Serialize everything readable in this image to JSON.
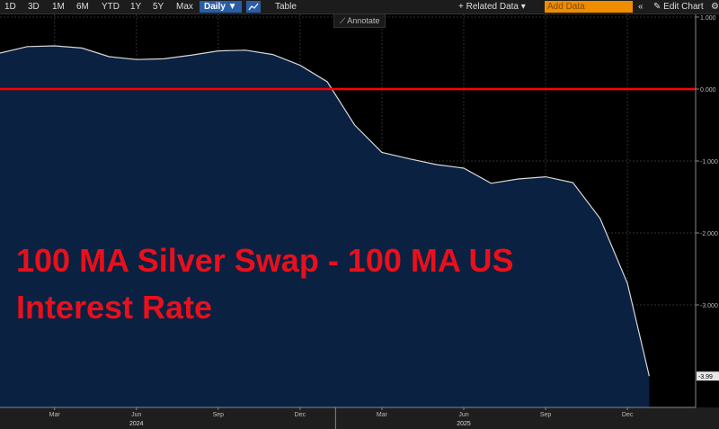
{
  "toolbar": {
    "ranges": [
      "1D",
      "3D",
      "1M",
      "6M",
      "YTD",
      "1Y",
      "5Y",
      "Max"
    ],
    "interval": "Daily ▼",
    "table": "Table",
    "related": "+ Related Data ▾",
    "add_placeholder": "Add Data",
    "collapse": "«",
    "edit_chart": "✎ Edit Chart",
    "settings": "⚙",
    "annotate": "⟋ Annotate"
  },
  "colors": {
    "background": "#000000",
    "area_fill": "#0b2142",
    "line": "#d8d8d8",
    "zero_line": "#ff0000",
    "title": "#e8101c",
    "grid": "#2f2f2f"
  },
  "chart_data": {
    "type": "area",
    "title": "100 MA Silver Swap - 100 MA US Interest Rate",
    "xlabel": "",
    "ylabel": "",
    "ylim": [
      -4.25,
      1.0
    ],
    "y_ticks": [
      1.0,
      0.0,
      -1.0,
      -2.0,
      -3.0
    ],
    "y_tick_labels": [
      "1.000",
      "0.000",
      "-1.000",
      "-2.000",
      "-3.000"
    ],
    "x_tick_labels": [
      "Mar",
      "Jun",
      "Sep",
      "Dec",
      "Mar",
      "Jun",
      "Sep",
      "Dec"
    ],
    "x_tick_months": [
      2,
      5,
      8,
      11,
      14,
      17,
      20,
      23
    ],
    "year_labels": [
      "2024",
      "2025"
    ],
    "year_label_months": [
      5,
      17
    ],
    "xlim_months": [
      0,
      25.5
    ],
    "reference_line": 0.0,
    "last_value_label": "-3.99",
    "series": [
      {
        "name": "100 MA Silver Swap - 100 MA US Interest Rate",
        "x_months": [
          0,
          1,
          2,
          3,
          4,
          5,
          6,
          7,
          8,
          9,
          10,
          11,
          12,
          13,
          14,
          15,
          16,
          17,
          18,
          19,
          20,
          21,
          22,
          23,
          23.8
        ],
        "values": [
          0.5,
          0.59,
          0.6,
          0.57,
          0.45,
          0.41,
          0.42,
          0.47,
          0.53,
          0.54,
          0.48,
          0.33,
          0.1,
          -0.5,
          -0.88,
          -0.97,
          -1.05,
          -1.1,
          -1.31,
          -1.25,
          -1.22,
          -1.3,
          -1.8,
          -2.7,
          -3.99
        ]
      }
    ]
  }
}
